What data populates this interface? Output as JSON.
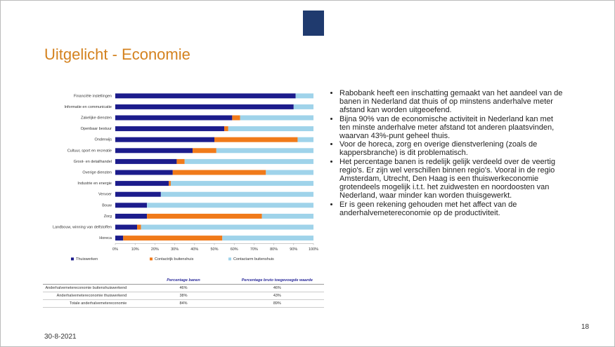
{
  "title": "Uitgelicht - Economie",
  "chart_data": {
    "type": "bar",
    "orientation": "horizontal",
    "stacked": true,
    "categories": [
      "Financiële instellingen",
      "Informatie en communicatie",
      "Zakelijke diensten",
      "Openbaar bestuur",
      "Onderwijs",
      "Cultuur, sport en recreatie",
      "Groot- en detailhandel",
      "Overige diensten",
      "Industrie en energie",
      "Vervoer",
      "Bouw",
      "Zorg",
      "Landbouw, winning van delfstoffen",
      "Horeca"
    ],
    "series": [
      {
        "name": "Thuiswerken",
        "color": "#1c1c8c",
        "values": [
          91,
          90,
          59,
          55,
          50,
          39,
          31,
          29,
          27,
          23,
          16,
          16,
          11,
          4
        ]
      },
      {
        "name": "Contactrijk buitenshuis",
        "color": "#f07a1a",
        "values": [
          0,
          0,
          4,
          2,
          42,
          12,
          4,
          47,
          1,
          0,
          0,
          58,
          2,
          50
        ]
      },
      {
        "name": "Contactarm buitenshuis",
        "color": "#9fd3ea",
        "values": [
          9,
          10,
          37,
          43,
          8,
          49,
          65,
          24,
          72,
          77,
          84,
          26,
          87,
          46
        ]
      }
    ],
    "xlim": [
      0,
      100
    ],
    "xticks": [
      {
        "value": 0,
        "label": "0%"
      },
      {
        "value": 10,
        "label": "10%"
      },
      {
        "value": 20,
        "label": "20%"
      },
      {
        "value": 30,
        "label": "30%"
      },
      {
        "value": 40,
        "label": "40%"
      },
      {
        "value": 50,
        "label": "50%"
      },
      {
        "value": 60,
        "label": "60%"
      },
      {
        "value": 70,
        "label": "70%"
      },
      {
        "value": 80,
        "label": "80%"
      },
      {
        "value": 90,
        "label": "90%"
      },
      {
        "value": 100,
        "label": "100%"
      }
    ],
    "grid": false,
    "legend": "bottom"
  },
  "table": {
    "header": [
      "Percentage banen",
      "Percentage bruto toegevoegde waarde"
    ],
    "rows": [
      [
        "Anderhalvemetereconomie buitenshuiswerkend",
        "46%",
        "46%"
      ],
      [
        "Anderhalvemetereconomie thuiswerkend",
        "38%",
        "43%"
      ],
      [
        "Totale anderhalvemetereconomie",
        "84%",
        "89%"
      ]
    ]
  },
  "bullets": [
    "Rabobank heeft een inschatting gemaakt van het aandeel van de banen in Nederland dat thuis of op minstens anderhalve meter afstand kan worden uitgeoefend.",
    "Bijna 90% van de economische activiteit in Nederland kan met ten minste anderhalve meter afstand tot anderen plaatsvinden, waarvan 43%-punt geheel thuis.",
    "Voor de horeca, zorg en overige dienstverlening (zoals de kappersbranche) is dit problematisch.",
    "Het percentage banen is redelijk gelijk verdeeld over de veertig regio's. Er zijn wel verschillen binnen regio's. Vooral in de regio Amsterdam, Utrecht, Den Haag is een thuiswerkeconomie grotendeels mogelijk i.t.t. het zuidwesten en noordoosten van Nederland, waar minder kan worden thuisgewerkt.",
    "Er is geen rekening gehouden met het affect van de anderhalvemetereconomie op de productiviteit."
  ],
  "date": "30-8-2021",
  "page_number": "18"
}
